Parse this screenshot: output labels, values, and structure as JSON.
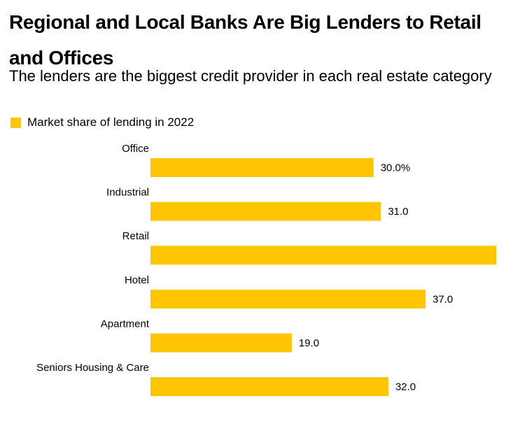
{
  "title": "Regional and Local Banks Are Big Lenders to Retail and Offices",
  "subtitle": "The lenders are the biggest credit provider in each real estate category",
  "legend": {
    "label": "Market share of lending in 2022"
  },
  "colors": {
    "bar": "#ffc500"
  },
  "chart_data": {
    "type": "bar",
    "orientation": "horizontal",
    "title": "Regional and Local Banks Are Big Lenders to Retail and Offices",
    "subtitle": "The lenders are the biggest credit provider in each real estate category",
    "categories": [
      "Office",
      "Industrial",
      "Retail",
      "Hotel",
      "Apartment",
      "Seniors Housing & Care"
    ],
    "series": [
      {
        "name": "Market share of lending in 2022",
        "values": [
          30.0,
          31.0,
          46.5,
          37.0,
          19.0,
          32.0
        ]
      }
    ],
    "data_labels": [
      "30.0%",
      "31.0",
      "",
      "37.0",
      "19.0",
      "32.0"
    ],
    "xlim": [
      0,
      46.5
    ],
    "xlabel": "",
    "ylabel": "",
    "grid": false,
    "legend_position": "top-left"
  }
}
